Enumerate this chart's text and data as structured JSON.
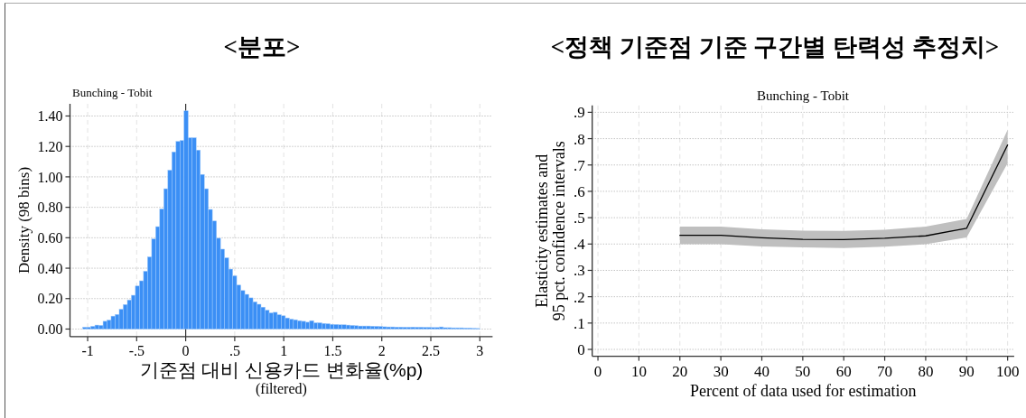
{
  "chart_data": [
    {
      "type": "histogram",
      "title": "<분포>",
      "subtitle": "Bunching - Tobit",
      "xlabel": "기준점 대비 신용카드 변화율(%p)\n(filtered)",
      "ylabel": "Density (98 bins)",
      "color": "#3b8ff5",
      "bins": [
        -1.05,
        -1.009,
        -0.967,
        -0.926,
        -0.885,
        -0.843,
        -0.802,
        -0.761,
        -0.719,
        -0.678,
        -0.637,
        -0.595,
        -0.554,
        -0.513,
        -0.471,
        -0.43,
        -0.389,
        -0.347,
        -0.306,
        -0.265,
        -0.223,
        -0.182,
        -0.141,
        -0.099,
        -0.058,
        -0.017,
        0.025,
        0.066,
        0.107,
        0.149,
        0.19,
        0.231,
        0.272,
        0.314,
        0.355,
        0.396,
        0.438,
        0.479,
        0.52,
        0.562,
        0.603,
        0.644,
        0.686,
        0.727,
        0.768,
        0.81,
        0.851,
        0.892,
        0.934,
        0.975,
        1.016,
        1.058,
        1.099,
        1.14,
        1.182,
        1.223,
        1.264,
        1.306,
        1.347,
        1.388,
        1.43,
        1.471,
        1.512,
        1.554,
        1.595,
        1.636,
        1.678,
        1.719,
        1.76,
        1.802,
        1.843,
        1.884,
        1.925,
        1.967,
        2.008,
        2.049,
        2.091,
        2.132,
        2.173,
        2.215,
        2.256,
        2.297,
        2.339,
        2.38,
        2.421,
        2.463,
        2.504,
        2.545,
        2.587,
        2.628,
        2.669,
        2.711,
        2.752,
        2.793,
        2.835,
        2.876,
        2.917,
        2.959,
        3.0
      ],
      "values": [
        0.012,
        0.012,
        0.018,
        0.026,
        0.024,
        0.051,
        0.059,
        0.085,
        0.096,
        0.13,
        0.161,
        0.191,
        0.222,
        0.283,
        0.317,
        0.38,
        0.474,
        0.592,
        0.673,
        0.789,
        0.922,
        1.044,
        1.164,
        1.233,
        1.239,
        1.434,
        1.257,
        1.257,
        1.176,
        1.016,
        0.922,
        0.786,
        0.71,
        0.597,
        0.525,
        0.468,
        0.394,
        0.35,
        0.289,
        0.253,
        0.228,
        0.205,
        0.179,
        0.163,
        0.144,
        0.124,
        0.106,
        0.11,
        0.094,
        0.087,
        0.073,
        0.065,
        0.061,
        0.055,
        0.051,
        0.045,
        0.055,
        0.041,
        0.041,
        0.037,
        0.035,
        0.031,
        0.03,
        0.028,
        0.028,
        0.026,
        0.024,
        0.022,
        0.02,
        0.02,
        0.02,
        0.019,
        0.018,
        0.017,
        0.015,
        0.014,
        0.014,
        0.013,
        0.013,
        0.012,
        0.012,
        0.013,
        0.012,
        0.012,
        0.011,
        0.011,
        0.01,
        0.01,
        0.014,
        0.009,
        0.009,
        0.008,
        0.008,
        0.008,
        0.007,
        0.007,
        0.005,
        0.004
      ],
      "xlim": [
        -1.18,
        3.13
      ],
      "ylim": [
        -0.05,
        1.48
      ],
      "xticks": [
        -1,
        {
          "value": -0.5,
          "label": "-.5"
        },
        0,
        {
          "value": 0.5,
          "label": ".5"
        },
        1,
        1.5,
        2,
        2.5,
        3
      ],
      "yticks": [
        {
          "value": 0,
          "label": "0.00"
        },
        {
          "value": 0.2,
          "label": "0.20"
        },
        {
          "value": 0.4,
          "label": "0.40"
        },
        {
          "value": 0.6,
          "label": "0.60"
        },
        {
          "value": 0.8,
          "label": "0.80"
        },
        {
          "value": 1,
          "label": "1.00"
        },
        {
          "value": 1.2,
          "label": "1.20"
        },
        {
          "value": 1.4,
          "label": "1.40"
        }
      ],
      "grid": true,
      "ref_lines": [
        {
          "axis": "x",
          "value": 0,
          "color": "#333333"
        }
      ]
    },
    {
      "type": "line",
      "title": "<정책 기준점 기준 구간별 탄력성 추정치>",
      "subtitle": "Bunching - Tobit",
      "xlabel": "Percent of data used for estimation",
      "ylabel": "Elasticity estimates and\n95 pct. confidence intervals",
      "x": [
        20,
        30,
        40,
        50,
        60,
        70,
        80,
        90,
        100
      ],
      "series": [
        {
          "color": "#000000",
          "values": [
            0.433,
            0.433,
            0.424,
            0.418,
            0.417,
            0.422,
            0.431,
            0.46,
            0.776
          ],
          "lower": [
            0.399,
            0.399,
            0.391,
            0.387,
            0.385,
            0.39,
            0.399,
            0.425,
            0.707
          ],
          "upper": [
            0.466,
            0.466,
            0.456,
            0.451,
            0.45,
            0.454,
            0.466,
            0.495,
            0.834
          ]
        }
      ],
      "xlim": [
        -1.4,
        101.6
      ],
      "ylim": [
        -0.026,
        0.926
      ],
      "xticks": [
        0,
        10,
        20,
        30,
        40,
        50,
        60,
        70,
        80,
        90,
        100
      ],
      "yticks": [
        0,
        {
          "value": 0.1,
          "label": ".1"
        },
        {
          "value": 0.2,
          "label": ".2"
        },
        {
          "value": 0.3,
          "label": ".3"
        },
        {
          "value": 0.4,
          "label": ".4"
        },
        {
          "value": 0.5,
          "label": ".5"
        },
        {
          "value": 0.6,
          "label": ".6"
        },
        {
          "value": 0.7,
          "label": ".7"
        },
        {
          "value": 0.8,
          "label": ".8"
        },
        {
          "value": 0.9,
          "label": ".9"
        }
      ],
      "grid": true
    }
  ]
}
